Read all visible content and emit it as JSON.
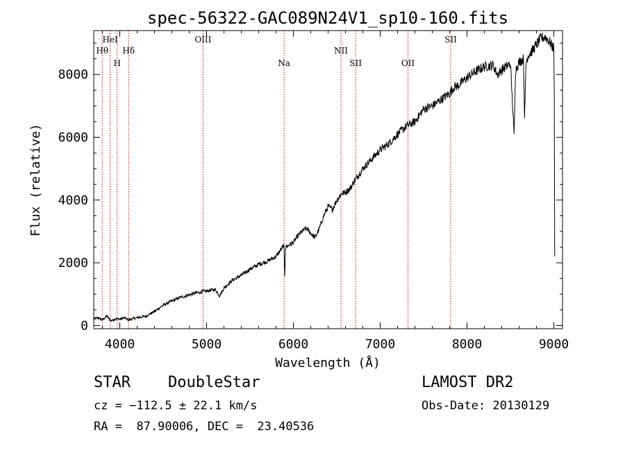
{
  "chart_data": {
    "type": "line",
    "title": "spec-56322-GAC089N24V1_sp10-160.fits",
    "xlabel": "Wavelength (Å)",
    "ylabel": "Flux (relative)",
    "xlim": [
      3700,
      9100
    ],
    "ylim": [
      -100,
      9400
    ],
    "x_ticks": [
      4000,
      5000,
      6000,
      7000,
      8000,
      9000
    ],
    "y_ticks": [
      0,
      2000,
      4000,
      6000,
      8000
    ],
    "x_tick_labels": [
      "4000",
      "5000",
      "6000",
      "7000",
      "8000",
      "9000"
    ],
    "y_tick_labels": [
      "0",
      "2000",
      "4000",
      "6000",
      "8000"
    ],
    "line_color": "#000000",
    "marker_color": "#cc0000",
    "series": [
      {
        "x": [
          3700,
          3750,
          3800,
          3850,
          3900,
          3950,
          4000,
          4050,
          4100,
          4150,
          4200,
          4300,
          4400,
          4500,
          4600,
          4700,
          4800,
          4900,
          5000,
          5100,
          5150,
          5200,
          5300,
          5400,
          5500,
          5600,
          5700,
          5800,
          5850,
          5890,
          5900,
          5910,
          6000,
          6050,
          6100,
          6150,
          6200,
          6250,
          6300,
          6350,
          6400,
          6450,
          6500,
          6550,
          6600,
          6650,
          6700,
          6750,
          6800,
          6900,
          7000,
          7100,
          7200,
          7300,
          7400,
          7500,
          7600,
          7700,
          7800,
          7850,
          7900,
          8000,
          8100,
          8200,
          8300,
          8350,
          8400,
          8450,
          8500,
          8542,
          8560,
          8600,
          8650,
          8662,
          8680,
          8700,
          8750,
          8800,
          8850,
          8900,
          8950,
          8980,
          9000,
          9005,
          9010
        ],
        "y": [
          200,
          250,
          180,
          300,
          150,
          220,
          200,
          250,
          180,
          220,
          250,
          300,
          450,
          650,
          780,
          900,
          980,
          1050,
          1100,
          1150,
          950,
          1200,
          1450,
          1600,
          1800,
          1950,
          2050,
          2200,
          2400,
          2550,
          1600,
          2500,
          2650,
          2850,
          3000,
          3100,
          2950,
          2800,
          3100,
          3500,
          3800,
          3700,
          4000,
          4200,
          4250,
          4350,
          4600,
          4800,
          5000,
          5300,
          5600,
          5800,
          6100,
          6350,
          6500,
          6900,
          7000,
          7200,
          7400,
          7600,
          7650,
          7900,
          8100,
          8250,
          8300,
          8000,
          8150,
          8250,
          8350,
          6100,
          8150,
          8400,
          8500,
          6600,
          8350,
          8600,
          8750,
          8950,
          9150,
          9200,
          9050,
          8900,
          8850,
          7500,
          2200
        ]
      }
    ],
    "line_markers": [
      {
        "label": "Hθ",
        "x": 3798,
        "row": 2
      },
      {
        "label": "HeI",
        "x": 3889,
        "row": 1
      },
      {
        "label": "H",
        "x": 3970,
        "row": 3
      },
      {
        "label": "Hδ",
        "x": 4102,
        "row": 2
      },
      {
        "label": "OIII",
        "x": 4959,
        "row": 1
      },
      {
        "label": "Na",
        "x": 5893,
        "row": 3
      },
      {
        "label": "NII",
        "x": 6548,
        "row": 2
      },
      {
        "label": "SII",
        "x": 6717,
        "row": 3
      },
      {
        "label": "OII",
        "x": 7320,
        "row": 3
      },
      {
        "label": "SII",
        "x": 7812,
        "row": 1
      }
    ]
  },
  "info": {
    "class_label": "STAR",
    "subclass_label": "DoubleStar",
    "survey_label": "LAMOST DR2",
    "cz_text": "cz = −112.5 ± 22.1 km/s",
    "obs_date_text": "Obs-Date: 20130129",
    "coords_text": "RA =  87.90006, DEC =  23.40536"
  }
}
